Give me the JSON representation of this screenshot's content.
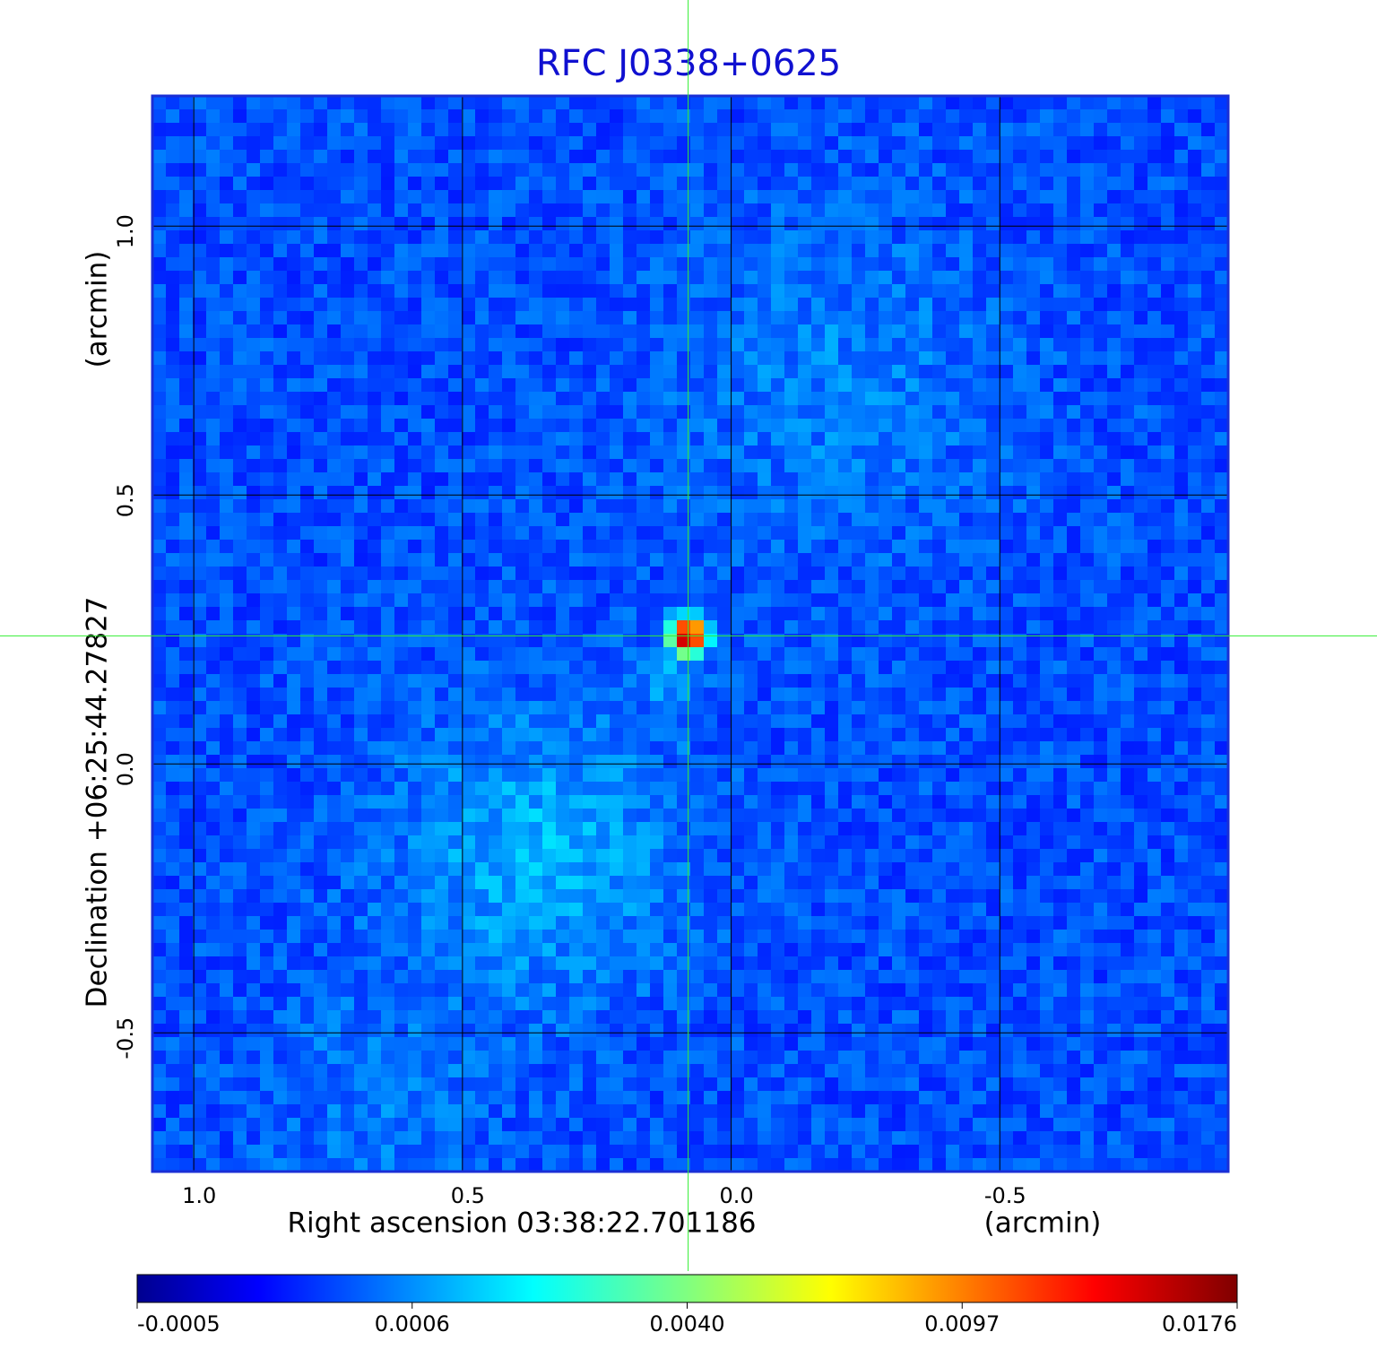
{
  "chart_data": {
    "type": "image",
    "title": "RFC J0338+0625",
    "x_label": "Right ascension  03:38:22.701186",
    "x_unit": "(arcmin)",
    "y_label": "Declination  +06:25:44.27827",
    "y_unit": "(arcmin)",
    "xlim": [
      1.077,
      -0.925
    ],
    "ylim": [
      -0.758,
      1.242
    ],
    "xticks": [
      {
        "value": 1,
        "label": "1.0"
      },
      0.5,
      {
        "value": 0,
        "label": "0.0"
      },
      -0.5
    ],
    "yticks": [
      -0.5,
      {
        "value": 0,
        "label": "0.0"
      },
      0.5,
      {
        "value": 1,
        "label": "1.0"
      }
    ],
    "grid": true,
    "source": {
      "x": 0.08,
      "y": 0.238
    },
    "colorbar_ticks": [
      -0.0005,
      0.0006,
      {
        "value": 0.004,
        "label": "0.0040"
      },
      0.0097,
      0.0176
    ]
  }
}
